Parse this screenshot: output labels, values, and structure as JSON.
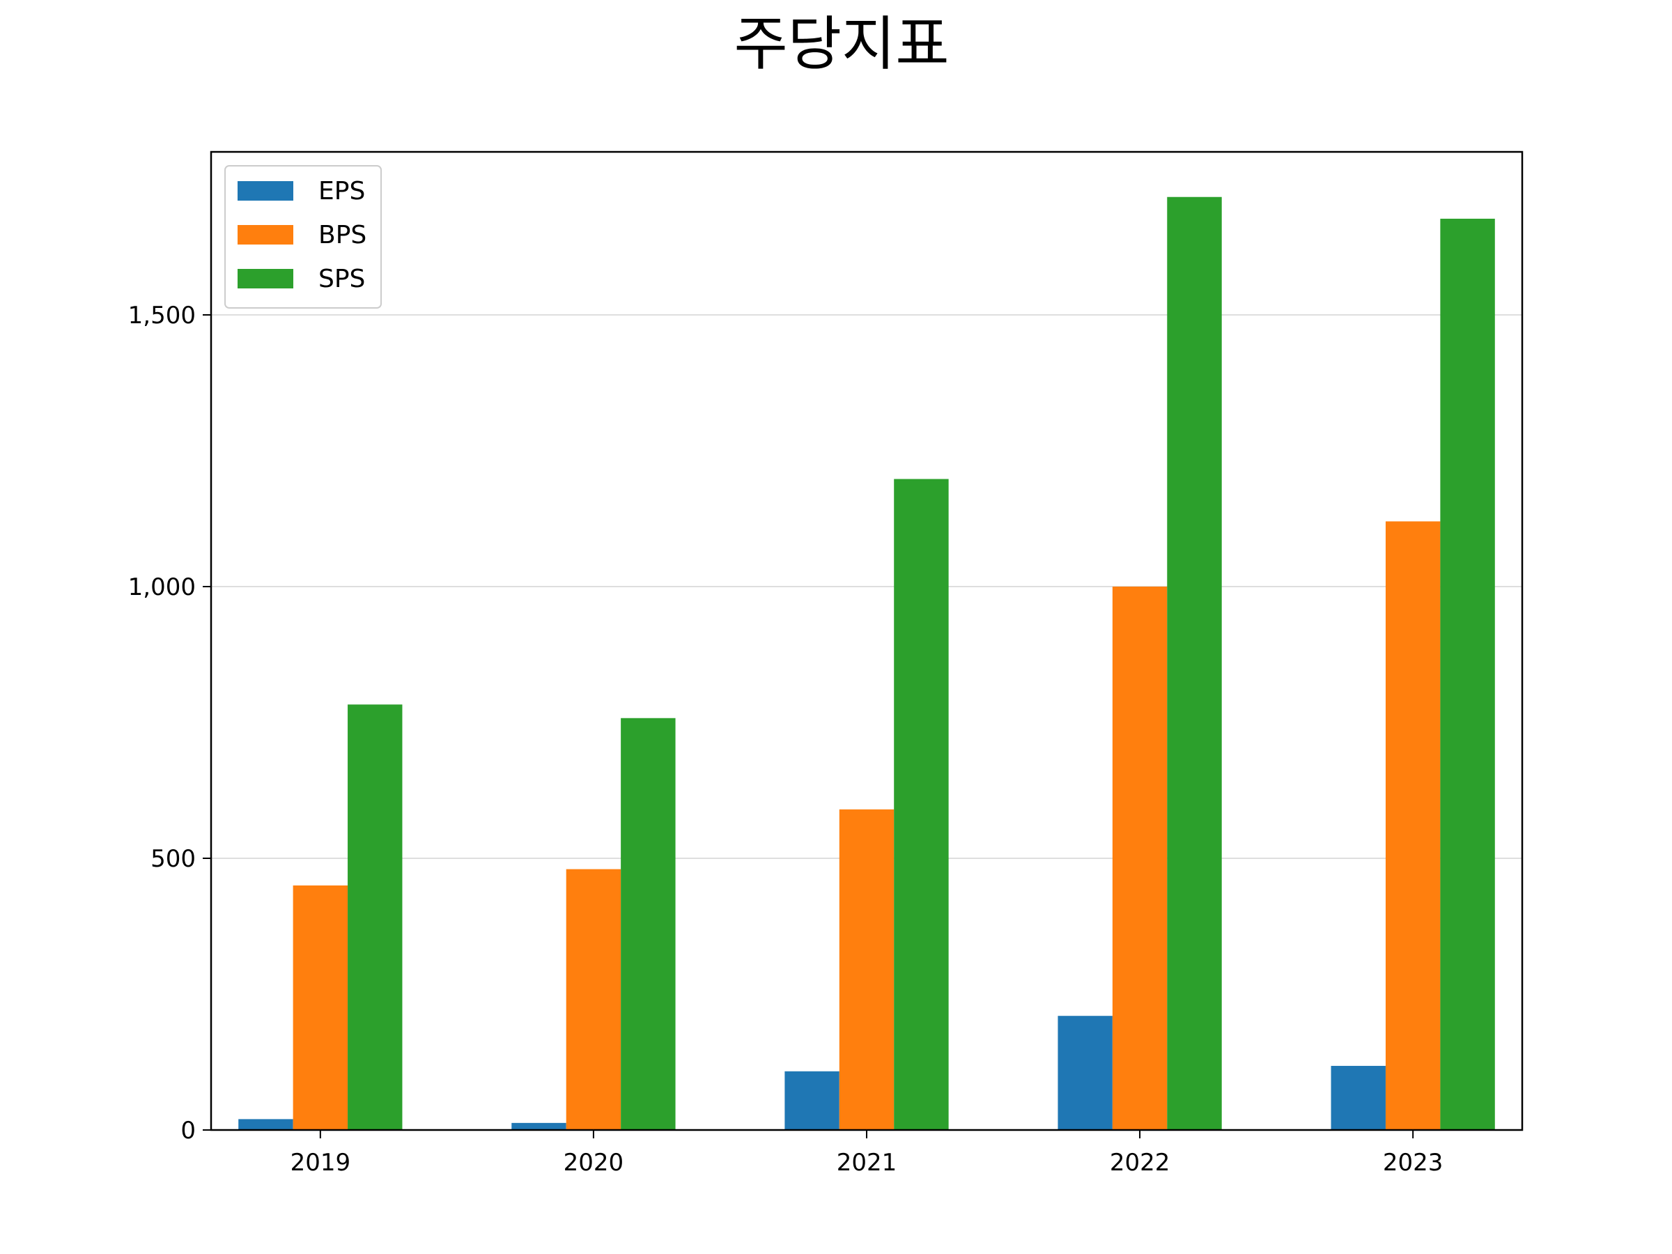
{
  "chart_data": {
    "type": "bar",
    "title": "주당지표",
    "categories": [
      "2019",
      "2020",
      "2021",
      "2022",
      "2023"
    ],
    "series": [
      {
        "name": "EPS",
        "color": "#1f77b4",
        "values": [
          20,
          13,
          108,
          210,
          118
        ]
      },
      {
        "name": "BPS",
        "color": "#ff7f0e",
        "values": [
          450,
          480,
          590,
          1000,
          1120
        ]
      },
      {
        "name": "SPS",
        "color": "#2ca02c",
        "values": [
          783,
          758,
          1198,
          1717,
          1677
        ]
      }
    ],
    "ylim": [
      0,
      1800
    ],
    "yticks": [
      0,
      500,
      1000,
      1500
    ],
    "ytick_labels": [
      "0",
      "500",
      "1,000",
      "1,500"
    ],
    "grid": "y-major",
    "legend": "top-left",
    "xlabel": "",
    "ylabel": ""
  }
}
